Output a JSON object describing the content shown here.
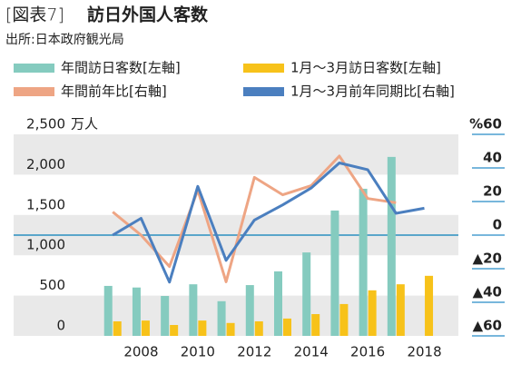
{
  "chart_data": {
    "type": "bar-line",
    "title_prefix": "[図表7]",
    "title": "訪日外国人客数",
    "subtitle": "出所:日本政府観光局",
    "y_unit": "万人",
    "x": [
      2007,
      2008,
      2009,
      2010,
      2011,
      2012,
      2013,
      2014,
      2015,
      2016,
      2017,
      2018
    ],
    "xlim": [
      2003.5,
      2019.2
    ],
    "xticks": [
      2008,
      2010,
      2012,
      2014,
      2016,
      2018
    ],
    "ylim": [
      0,
      2500
    ],
    "yticks": [
      0,
      500,
      {
        "value": 1000,
        "label": "1,000"
      },
      {
        "value": 1500,
        "label": "1,500"
      },
      {
        "value": 2000,
        "label": "2,000"
      },
      {
        "value": 2500,
        "label": "2,500"
      }
    ],
    "y2lim": [
      -60,
      60
    ],
    "y2ticks": [
      {
        "value": 60,
        "label": "%60"
      },
      40,
      20,
      0,
      {
        "value": -20,
        "label": "▲20"
      },
      {
        "value": -40,
        "label": "▲40"
      },
      {
        "value": -60,
        "label": "▲60"
      }
    ],
    "series": [
      {
        "name": "年間訪日客数[左軸]",
        "type": "bar",
        "color": "#85cbbf",
        "values": [
          620,
          600,
          495,
          640,
          430,
          630,
          800,
          1035,
          1555,
          1825,
          2220,
          null
        ]
      },
      {
        "name": "1月～3月訪日客数[左軸]",
        "type": "bar",
        "color": "#f7c21a",
        "values": [
          180,
          190,
          135,
          190,
          160,
          180,
          215,
          270,
          395,
          565,
          640,
          745
        ]
      },
      {
        "name": "年間前年比[右軸]",
        "type": "line",
        "axis": "y2",
        "color": "#eea584",
        "values": [
          13.8,
          0,
          -18.7,
          26.8,
          -27.8,
          34.4,
          24,
          29.4,
          47.1,
          21.8,
          19.3,
          null
        ]
      },
      {
        "name": "1月～3月前年同期比[右軸]",
        "type": "line",
        "axis": "y2",
        "color": "#4b7fbf",
        "values": [
          0,
          10,
          -28,
          29,
          -15,
          9,
          18,
          28,
          43,
          39,
          13,
          16
        ]
      }
    ]
  }
}
